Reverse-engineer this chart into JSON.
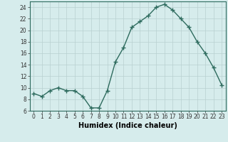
{
  "x": [
    0,
    1,
    2,
    3,
    4,
    5,
    6,
    7,
    8,
    9,
    10,
    11,
    12,
    13,
    14,
    15,
    16,
    17,
    18,
    19,
    20,
    21,
    22,
    23
  ],
  "y": [
    9,
    8.5,
    9.5,
    10,
    9.5,
    9.5,
    8.5,
    6.5,
    6.5,
    9.5,
    14.5,
    17,
    20.5,
    21.5,
    22.5,
    24,
    24.5,
    23.5,
    22,
    20.5,
    18,
    16,
    13.5,
    10.5
  ],
  "line_color": "#2e6b5e",
  "marker": "+",
  "marker_size": 4,
  "linewidth": 1.0,
  "bg_color": "#d6ecec",
  "grid_color": "#b8d0d0",
  "xlabel": "Humidex (Indice chaleur)",
  "xlim": [
    -0.5,
    23.5
  ],
  "ylim": [
    6,
    25
  ],
  "yticks": [
    6,
    8,
    10,
    12,
    14,
    16,
    18,
    20,
    22,
    24
  ],
  "xticks": [
    0,
    1,
    2,
    3,
    4,
    5,
    6,
    7,
    8,
    9,
    10,
    11,
    12,
    13,
    14,
    15,
    16,
    17,
    18,
    19,
    20,
    21,
    22,
    23
  ],
  "tick_fontsize": 5.5,
  "xlabel_fontsize": 7.0
}
